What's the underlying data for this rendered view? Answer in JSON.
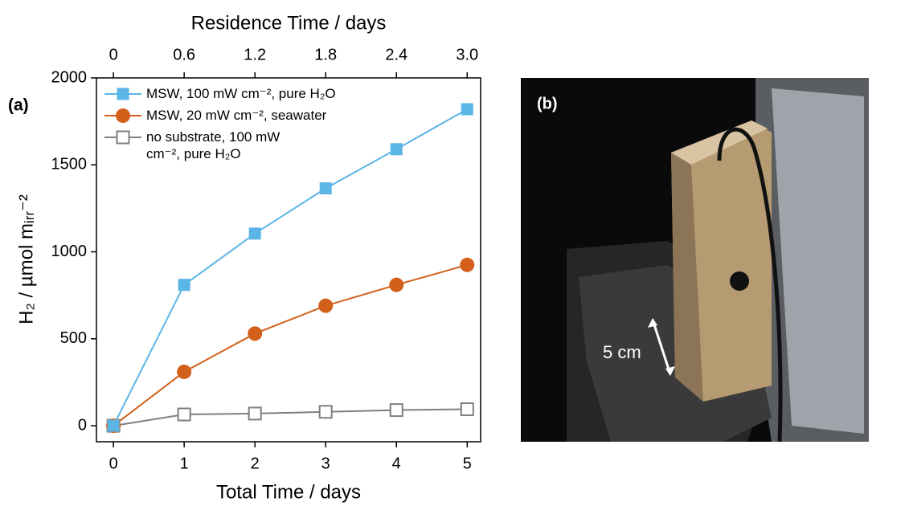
{
  "chart_data": {
    "type": "line",
    "panel_label": "(a)",
    "x_label": "Total Time / days",
    "x2_label": "Residence Time / days",
    "y_label": "H₂ / µmol mᵢᵣᵣ⁻²",
    "x": [
      0,
      1,
      2,
      3,
      4,
      5
    ],
    "series": [
      {
        "name": "MSW, 100 mW cm⁻², pure H₂O",
        "color": "#5bb5e6",
        "marker": "square",
        "values": [
          0,
          810,
          1105,
          1365,
          1590,
          1820
        ]
      },
      {
        "name": "MSW, 20 mW cm⁻², seawater",
        "color": "#d2601a",
        "marker": "circle",
        "values": [
          0,
          310,
          530,
          690,
          810,
          925
        ]
      },
      {
        "name": "no substrate, 100 mW cm⁻², pure H₂O",
        "color": "#7f7f7f",
        "marker": "open-square",
        "values": [
          0,
          65,
          70,
          80,
          90,
          95
        ]
      }
    ],
    "xlim": [
      -0.24,
      5.19
    ],
    "xticks": [
      0,
      1,
      2,
      3,
      4,
      5
    ],
    "x2lim": [
      -0.144,
      3.114
    ],
    "x2ticks": [
      0,
      0.6,
      1.2,
      1.8,
      2.4,
      {
        "value": 3,
        "label": "3.0"
      }
    ],
    "ylim": [
      -92,
      2000
    ],
    "yticks": [
      0,
      500,
      1000,
      1500,
      2000
    ]
  },
  "photo": {
    "panel_label": "(b)",
    "scale_text": "5 cm"
  }
}
